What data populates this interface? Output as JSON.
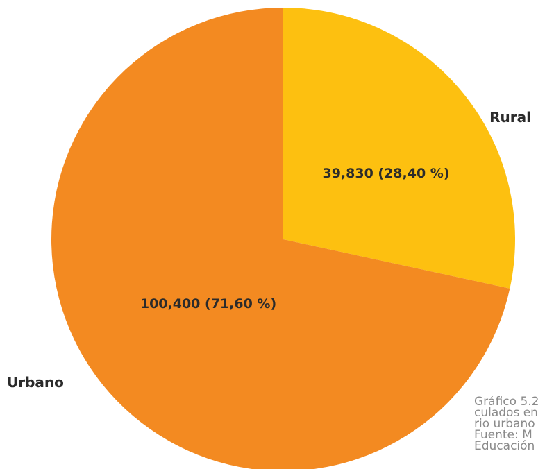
{
  "chart_data": {
    "type": "pie",
    "slices": [
      {
        "name": "Rural",
        "value": 39830,
        "percent": 28.4,
        "label": "39,830 (28,40 %)",
        "color": "#FDC010"
      },
      {
        "name": "Urbano",
        "value": 100400,
        "percent": 71.6,
        "label": "100,400 (71,60 %)",
        "color": "#F38A21"
      }
    ],
    "start": "12 o'clock",
    "direction": "clockwise"
  },
  "caption": {
    "lines": [
      "Gráfico 5.2",
      "culados en",
      "rio urbano",
      "Fuente: M",
      "Educación"
    ]
  }
}
